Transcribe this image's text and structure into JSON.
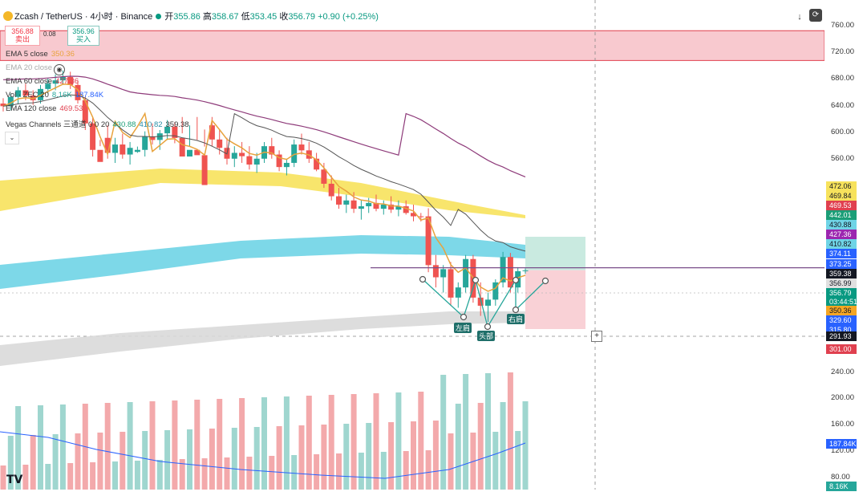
{
  "header": {
    "title": "Zcash / TetherUS · 4小时 · Binance",
    "open_label": "开",
    "open": "355.86",
    "high_label": "高",
    "high": "358.67",
    "low_label": "低",
    "low": "353.45",
    "close_label": "收",
    "close": "356.79",
    "change": "+0.90 (+0.25%)"
  },
  "trade": {
    "sell_price": "356.88",
    "sell_label": "卖出",
    "spread": "0.08",
    "buy_price": "356.96",
    "buy_label": "买入"
  },
  "indicators": [
    {
      "name": "EMA 5 close",
      "values": [
        "350.36"
      ],
      "color": "#e8a33d"
    },
    {
      "name": "EMA 20 close",
      "values": [],
      "color": "#999999"
    },
    {
      "name": "EMA 60 close",
      "values": [
        "427.36"
      ],
      "color": "#e0404f"
    },
    {
      "name": "Vol · ZEC 20",
      "values": [
        "8.16K",
        "187.84K"
      ],
      "color": "#26a69a"
    },
    {
      "name": "EMA 120 close",
      "values": [
        "469.53"
      ],
      "color": "#e0404f"
    },
    {
      "name": "Vegas Channels 三通道 0 0 20",
      "values": [
        "",
        "",
        "430.88",
        "410.82",
        "359.38"
      ],
      "color": "#333333"
    }
  ],
  "price_axis": {
    "ticks": [
      "760.00",
      "720.00",
      "680.00",
      "640.00",
      "600.00",
      "560.00",
      "240.00",
      "200.00",
      "160.00",
      "120.00",
      "80.00"
    ]
  },
  "price_labels": [
    {
      "text": "472.06",
      "bg": "#f7e25c",
      "fg": "#131722"
    },
    {
      "text": "469.84",
      "bg": "#f7e25c",
      "fg": "#131722"
    },
    {
      "text": "469.53",
      "bg": "#e0404f",
      "fg": "#ffffff"
    },
    {
      "text": "442.01",
      "bg": "#1b9e77",
      "fg": "#ffffff"
    },
    {
      "text": "430.88",
      "bg": "#6fd4e6",
      "fg": "#131722"
    },
    {
      "text": "427.36",
      "bg": "#9c27b0",
      "fg": "#ffffff"
    },
    {
      "text": "410.82",
      "bg": "#6fd4e6",
      "fg": "#131722"
    },
    {
      "text": "374.11",
      "bg": "#2962ff",
      "fg": "#ffffff"
    },
    {
      "text": "373.25",
      "bg": "#2962ff",
      "fg": "#ffffff"
    },
    {
      "text": "359.38",
      "bg": "#131722",
      "fg": "#ffffff"
    },
    {
      "text": "356.99",
      "bg": "#e0e0e0",
      "fg": "#131722"
    },
    {
      "text": "356.79",
      "bg": "#089981",
      "fg": "#ffffff"
    },
    {
      "text": "03:44:51",
      "bg": "#089981",
      "fg": "#ffffff"
    },
    {
      "text": "350.36",
      "bg": "#f5a623",
      "fg": "#131722"
    },
    {
      "text": "329.60",
      "bg": "#2962ff",
      "fg": "#ffffff"
    },
    {
      "text": "315.80",
      "bg": "#2962ff",
      "fg": "#ffffff"
    },
    {
      "text": "291.93",
      "bg": "#131722",
      "fg": "#ffffff"
    },
    {
      "text": "301.00",
      "bg": "#e0404f",
      "fg": "#ffffff"
    },
    {
      "text": "187.84K",
      "bg": "#2962ff",
      "fg": "#ffffff"
    },
    {
      "text": "8.16K",
      "bg": "#26a69a",
      "fg": "#ffffff"
    }
  ],
  "annotations": {
    "left_shoulder": "左肩",
    "head": "头部",
    "right_shoulder": "右肩"
  },
  "watermark": "TV",
  "colors": {
    "up": "#26a69a",
    "down": "#ef5350",
    "ema5": "#e8a33d",
    "ema20": "#555555",
    "ema60": "#8e3b7a",
    "vegas_yellow": "#f7e25c",
    "vegas_cyan": "#6fd4e6",
    "vegas_grey": "#d9d9d9",
    "resistance_zone": "#f8c9cf",
    "neckline": "#7a4f8a",
    "tp_zone": "#bfe6db",
    "sl_zone": "#f8c9cf"
  },
  "chart_data": {
    "type": "candlestick",
    "symbol": "Zcash / TetherUS",
    "interval": "4小时",
    "exchange": "Binance",
    "y_axis_ticks": [
      760,
      720,
      680,
      640,
      600,
      560,
      240,
      200,
      160,
      120,
      80
    ],
    "resistance_zone": [
      705,
      750
    ],
    "neckline": 359.38,
    "current_close": 356.79,
    "long_position": {
      "entry": 356.99,
      "target": 442.01,
      "stop": 301.0
    },
    "pattern": "head-and-shoulders bottom",
    "ohlc": [
      [
        640,
        648,
        628,
        636
      ],
      [
        636,
        655,
        630,
        650
      ],
      [
        650,
        665,
        640,
        660
      ],
      [
        660,
        670,
        645,
        652
      ],
      [
        652,
        660,
        638,
        645
      ],
      [
        645,
        668,
        640,
        662
      ],
      [
        662,
        678,
        655,
        670
      ],
      [
        670,
        684,
        660,
        675
      ],
      [
        675,
        690,
        668,
        680
      ],
      [
        680,
        688,
        662,
        668
      ],
      [
        668,
        675,
        640,
        645
      ],
      [
        645,
        650,
        600,
        610
      ],
      [
        610,
        620,
        560,
        570
      ],
      [
        570,
        585,
        520,
        530
      ],
      [
        530,
        545,
        505,
        512
      ],
      [
        512,
        530,
        500,
        522
      ],
      [
        522,
        535,
        505,
        510
      ],
      [
        510,
        525,
        498,
        518
      ],
      [
        518,
        575,
        512,
        570
      ],
      [
        570,
        598,
        560,
        590
      ],
      [
        590,
        610,
        578,
        585
      ],
      [
        585,
        600,
        570,
        595
      ],
      [
        595,
        615,
        585,
        605
      ],
      [
        605,
        612,
        580,
        588
      ],
      [
        588,
        595,
        555,
        560
      ],
      [
        560,
        575,
        545,
        570
      ],
      [
        570,
        585,
        555,
        562
      ],
      [
        562,
        575,
        540,
        545
      ],
      [
        545,
        555,
        520,
        528
      ],
      [
        528,
        540,
        510,
        518
      ],
      [
        518,
        530,
        498,
        505
      ],
      [
        505,
        520,
        495,
        512
      ],
      [
        512,
        525,
        500,
        508
      ],
      [
        508,
        520,
        492,
        498
      ],
      [
        498,
        512,
        488,
        505
      ],
      [
        505,
        525,
        500,
        520
      ],
      [
        520,
        530,
        505,
        510
      ],
      [
        510,
        515,
        490,
        495
      ],
      [
        495,
        505,
        485,
        500
      ],
      [
        500,
        528,
        495,
        522
      ],
      [
        522,
        535,
        510,
        515
      ],
      [
        515,
        525,
        500,
        505
      ],
      [
        505,
        512,
        490,
        492
      ],
      [
        492,
        500,
        470,
        475
      ],
      [
        475,
        485,
        455,
        460
      ],
      [
        460,
        470,
        445,
        450
      ],
      [
        450,
        462,
        440,
        455
      ],
      [
        455,
        465,
        440,
        445
      ],
      [
        445,
        455,
        432,
        448
      ],
      [
        448,
        458,
        440,
        452
      ],
      [
        452,
        462,
        442,
        445
      ],
      [
        445,
        455,
        438,
        450
      ],
      [
        450,
        460,
        440,
        444
      ],
      [
        444,
        455,
        436,
        448
      ],
      [
        448,
        455,
        438,
        440
      ],
      [
        440,
        450,
        430,
        436
      ],
      [
        436,
        440,
        405,
        410
      ],
      [
        410,
        418,
        355,
        362
      ],
      [
        362,
        372,
        340,
        350
      ],
      [
        350,
        362,
        335,
        358
      ],
      [
        358,
        365,
        322,
        330
      ],
      [
        330,
        345,
        320,
        340
      ],
      [
        340,
        372,
        335,
        368
      ],
      [
        368,
        372,
        325,
        330
      ],
      [
        330,
        345,
        312,
        322
      ],
      [
        322,
        335,
        306,
        328
      ],
      [
        328,
        348,
        322,
        345
      ],
      [
        345,
        375,
        340,
        370
      ],
      [
        370,
        374,
        335,
        340
      ],
      [
        340,
        360,
        335,
        356
      ],
      [
        356,
        358.67,
        353.45,
        356.79
      ]
    ],
    "volume_ticks": [
      240,
      200,
      160,
      120,
      80
    ],
    "volume_last": "8.16K",
    "volume_ma": "187.84K"
  }
}
